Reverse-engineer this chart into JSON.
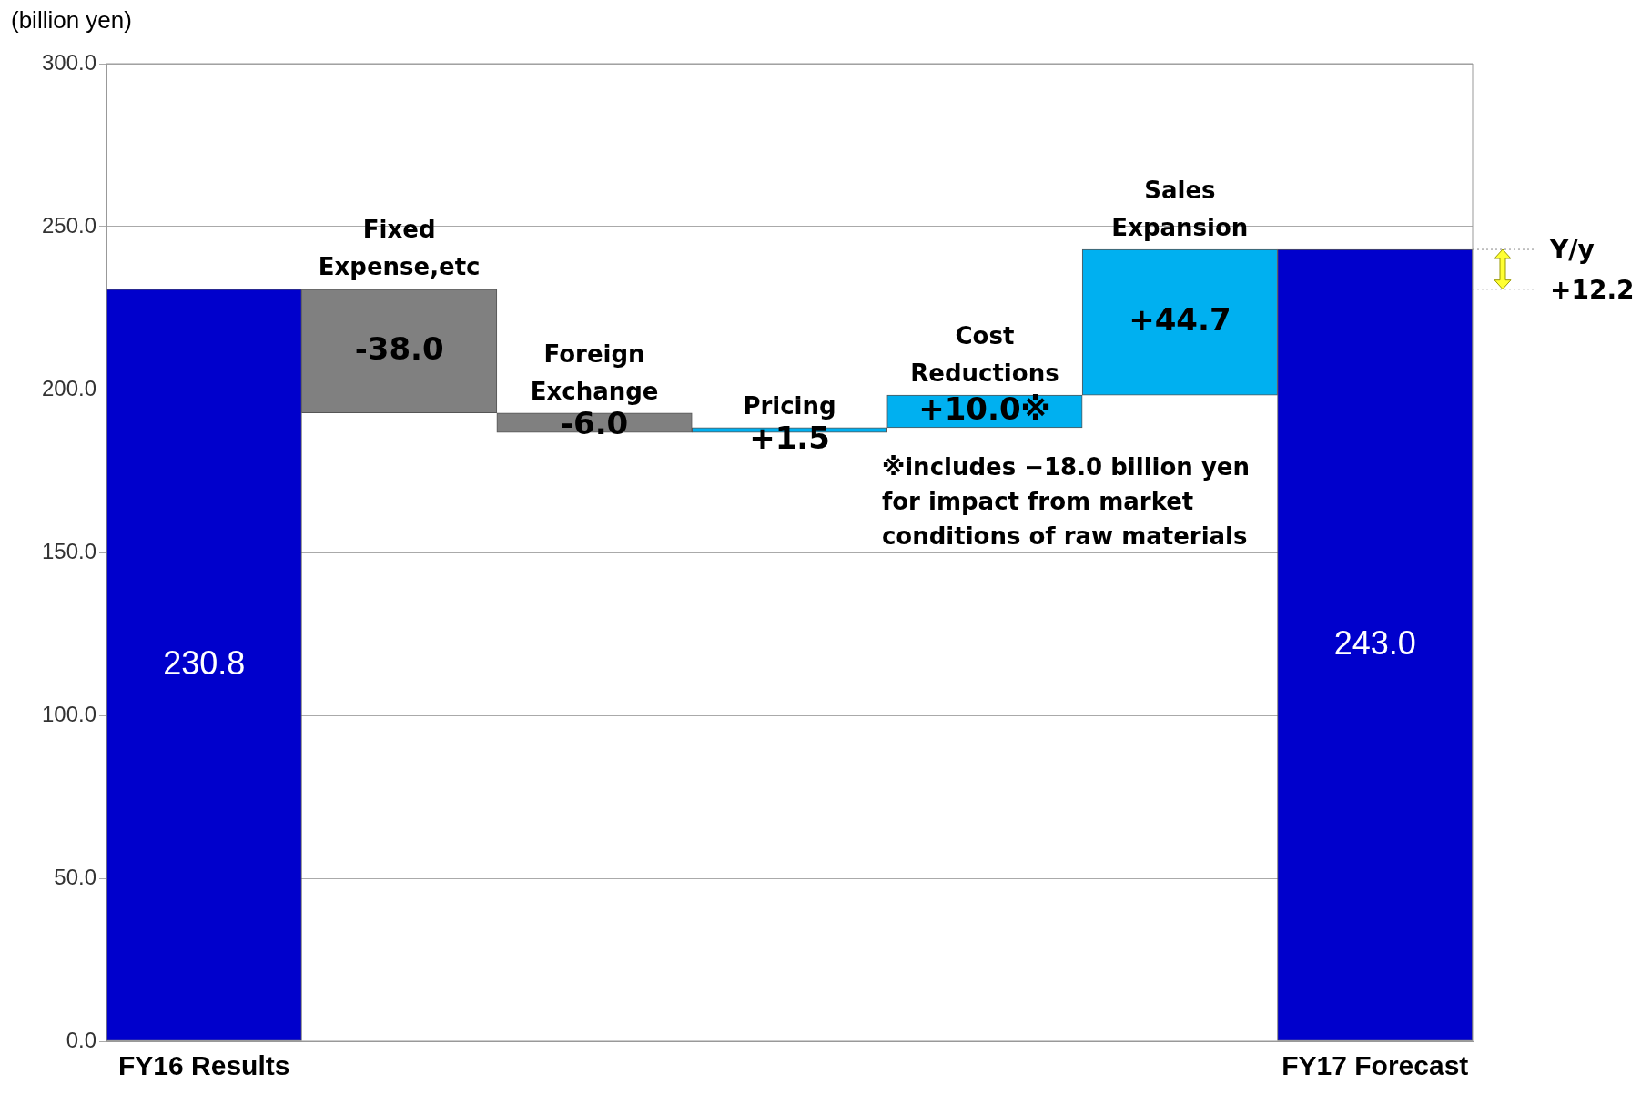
{
  "chart_data": {
    "type": "bar",
    "ylabel": "(billion yen)",
    "categories": [
      "FY16 Results",
      "Fixed Expense,etc",
      "Foreign Exchange",
      "Pricing",
      "Cost Reductions",
      "Sales Expansion",
      "FY17 Forecast"
    ],
    "values": [
      230.8,
      -38.0,
      -6.0,
      1.5,
      10.0,
      44.7,
      243.0
    ],
    "base": [
      0,
      230.8,
      192.8,
      186.8,
      188.3,
      198.3,
      0
    ],
    "colors": [
      "#0000cc",
      "#808080",
      "#808080",
      "#00b0f0",
      "#00b0f0",
      "#00b0f0",
      "#0000cc"
    ],
    "value_labels": [
      "230.8",
      "-38.0",
      "-6.0",
      "+1.5",
      "+10.0※",
      "+44.7",
      "243.0"
    ],
    "ylim": [
      0,
      300
    ],
    "yticks": [
      {
        "value": 0,
        "label": "0.0"
      },
      {
        "value": 50,
        "label": "50.0"
      },
      {
        "value": 100,
        "label": "100.0"
      },
      {
        "value": 150,
        "label": "150.0"
      },
      {
        "value": 200,
        "label": "200.0"
      },
      {
        "value": 250,
        "label": "250.0"
      },
      {
        "value": 300,
        "label": "300.0"
      }
    ],
    "grid": "y",
    "legend": false,
    "annotations": [
      "※includes −18.0 billion yen for impact from market conditions of raw materials",
      "Y/y +12.2"
    ]
  }
}
